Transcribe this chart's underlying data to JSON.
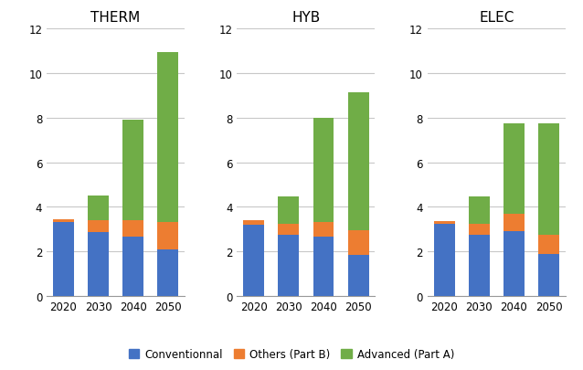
{
  "categories": [
    "2020",
    "2030",
    "2040",
    "2050"
  ],
  "subplots": [
    "THERM",
    "HYB",
    "ELEC"
  ],
  "series": {
    "Conventionnal": {
      "color": "#4472C4",
      "THERM": [
        3.3,
        2.85,
        2.65,
        2.1
      ],
      "HYB": [
        3.2,
        2.75,
        2.65,
        1.85
      ],
      "ELEC": [
        3.25,
        2.75,
        2.9,
        1.9
      ]
    },
    "Others (Part B)": {
      "color": "#ED7D31",
      "THERM": [
        0.15,
        0.55,
        0.75,
        1.2
      ],
      "HYB": [
        0.2,
        0.5,
        0.65,
        1.1
      ],
      "ELEC": [
        0.1,
        0.5,
        0.8,
        0.85
      ]
    },
    "Advanced (Part A)": {
      "color": "#70AD47",
      "THERM": [
        0.0,
        1.1,
        4.5,
        7.65
      ],
      "HYB": [
        0.0,
        1.2,
        4.7,
        6.2
      ],
      "ELEC": [
        0.0,
        1.2,
        4.05,
        5.0
      ]
    }
  },
  "ylim": [
    0,
    12
  ],
  "yticks": [
    0,
    2,
    4,
    6,
    8,
    10,
    12
  ],
  "title_fontsize": 11,
  "background_color": "#ffffff",
  "grid_color": "#c8c8c8",
  "legend_labels": [
    "Conventionnal",
    "Others (Part B)",
    "Advanced (Part A)"
  ],
  "bar_width": 0.6,
  "figsize": [
    6.38,
    4.06
  ],
  "dpi": 100
}
